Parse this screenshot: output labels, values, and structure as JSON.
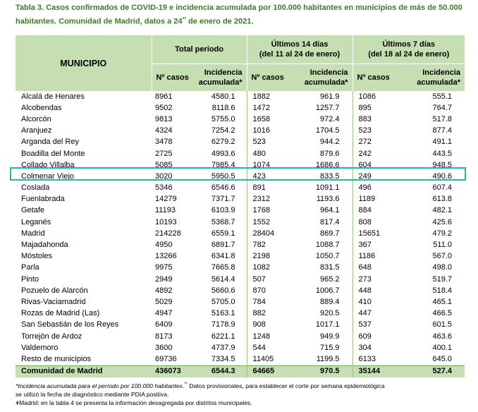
{
  "title": {
    "line1": "Tabla 3. Casos confirmados de COVID-19 e incidencia acumulada por 100.000 habitantes en municipios de más de 50.000",
    "line2_a": "habitantes. Comunidad de Madrid, datos a 24",
    "line2_sup": "**",
    "line2_b": " de enero de 2021."
  },
  "header": {
    "municipio": "MUNICIPIO",
    "total": "Total período",
    "d14_line1": "Últimos 14 días",
    "d14_line2": "(del 11 al 24 de enero)",
    "d7_line1": "Últimos 7 días",
    "d7_line2": "(del 18 al 24 de enero)",
    "casos": "Nº casos",
    "incidencia_1": "Incidencia",
    "incidencia_2": "acumulada*"
  },
  "rows": [
    {
      "name": "Alcalá de Henares",
      "v": [
        "8961",
        "4580.1",
        "1882",
        "961.9",
        "1086",
        "555.1"
      ]
    },
    {
      "name": "Alcobendas",
      "v": [
        "9502",
        "8118.6",
        "1472",
        "1257.7",
        "895",
        "764.7"
      ]
    },
    {
      "name": "Alcorcón",
      "v": [
        "9813",
        "5755.0",
        "1658",
        "972.4",
        "883",
        "517.8"
      ]
    },
    {
      "name": "Aranjuez",
      "v": [
        "4324",
        "7254.2",
        "1016",
        "1704.5",
        "523",
        "877.4"
      ]
    },
    {
      "name": "Arganda del Rey",
      "v": [
        "3478",
        "6279.2",
        "523",
        "944.2",
        "272",
        "491.1"
      ]
    },
    {
      "name": "Boadilla del Monte",
      "v": [
        "2725",
        "4993.6",
        "480",
        "879.6",
        "242",
        "443.5"
      ]
    },
    {
      "name": "Collado Villalba",
      "v": [
        "5085",
        "7985.4",
        "1074",
        "1686.6",
        "604",
        "948.5"
      ]
    },
    {
      "name": "Colmenar Viejo",
      "v": [
        "3020",
        "5950.5",
        "423",
        "833.5",
        "249",
        "490.6"
      ]
    },
    {
      "name": "Coslada",
      "v": [
        "5346",
        "6546.6",
        "891",
        "1091.1",
        "496",
        "607.4"
      ]
    },
    {
      "name": "Fuenlabrada",
      "v": [
        "14279",
        "7371.7",
        "2312",
        "1193.6",
        "1189",
        "613.8"
      ]
    },
    {
      "name": "Getafe",
      "v": [
        "11193",
        "6103.9",
        "1768",
        "964.1",
        "884",
        "482.1"
      ]
    },
    {
      "name": "Leganés",
      "v": [
        "10193",
        "5368.7",
        "1552",
        "817.4",
        "808",
        "425.6"
      ]
    },
    {
      "name": "Madrid",
      "v": [
        "214228",
        "6559.1",
        "28404",
        "869.7",
        "15651",
        "479.2"
      ]
    },
    {
      "name": "Majadahonda",
      "v": [
        "4950",
        "6891.7",
        "782",
        "1088.7",
        "367",
        "511.0"
      ]
    },
    {
      "name": "Móstoles",
      "v": [
        "13266",
        "6341.8",
        "2198",
        "1050.7",
        "1186",
        "567.0"
      ]
    },
    {
      "name": "Parla",
      "v": [
        "9975",
        "7665.8",
        "1082",
        "831.5",
        "648",
        "498.0"
      ]
    },
    {
      "name": "Pinto",
      "v": [
        "2949",
        "5614.4",
        "507",
        "965.2",
        "273",
        "519.7"
      ]
    },
    {
      "name": "Pozuelo de Alarcón",
      "v": [
        "4892",
        "5660.6",
        "870",
        "1006.7",
        "448",
        "518.4"
      ]
    },
    {
      "name": "Rivas-Vaciamadrid",
      "v": [
        "5029",
        "5705.0",
        "784",
        "889.4",
        "410",
        "465.1"
      ]
    },
    {
      "name": "Rozas de Madrid (Las)",
      "v": [
        "4947",
        "5163.1",
        "882",
        "920.5",
        "447",
        "466.5"
      ]
    },
    {
      "name": "San Sebastián de los Reyes",
      "v": [
        "6409",
        "7178.9",
        "908",
        "1017.1",
        "537",
        "601.5"
      ]
    },
    {
      "name": "Torrejón de Ardoz",
      "v": [
        "8173",
        "6221.1",
        "1248",
        "949.9",
        "609",
        "463.6"
      ]
    },
    {
      "name": "Valdemoro",
      "v": [
        "3600",
        "4737.9",
        "544",
        "715.9",
        "304",
        "400.1"
      ]
    },
    {
      "name": "Resto de municipios",
      "v": [
        "69736",
        "7334.5",
        "11405",
        "1199.5",
        "6133",
        "645.0"
      ]
    }
  ],
  "total": {
    "name": "Comunidad de Madrid",
    "v": [
      "436073",
      "6544.3",
      "64665",
      "970.5",
      "35144",
      "527.4"
    ]
  },
  "notes": {
    "note1_italic": "*Incidencia acumulada para el período por 100.000 habitantes.",
    "note1_sup": "**",
    "note1_rest": " Datos provisionales, para establecer el corte por semana epidemiológica",
    "note2": "se utilizó la fecha de diagnóstico mediante PDIA positiva.",
    "note3": "ǂMadrid: en la tabla 4 se presenta la información desagregada por distritos municipales."
  },
  "colors": {
    "header_bg": "#c5dfb3",
    "title": "#3e7a2c",
    "highlight": "#21b8a8"
  }
}
